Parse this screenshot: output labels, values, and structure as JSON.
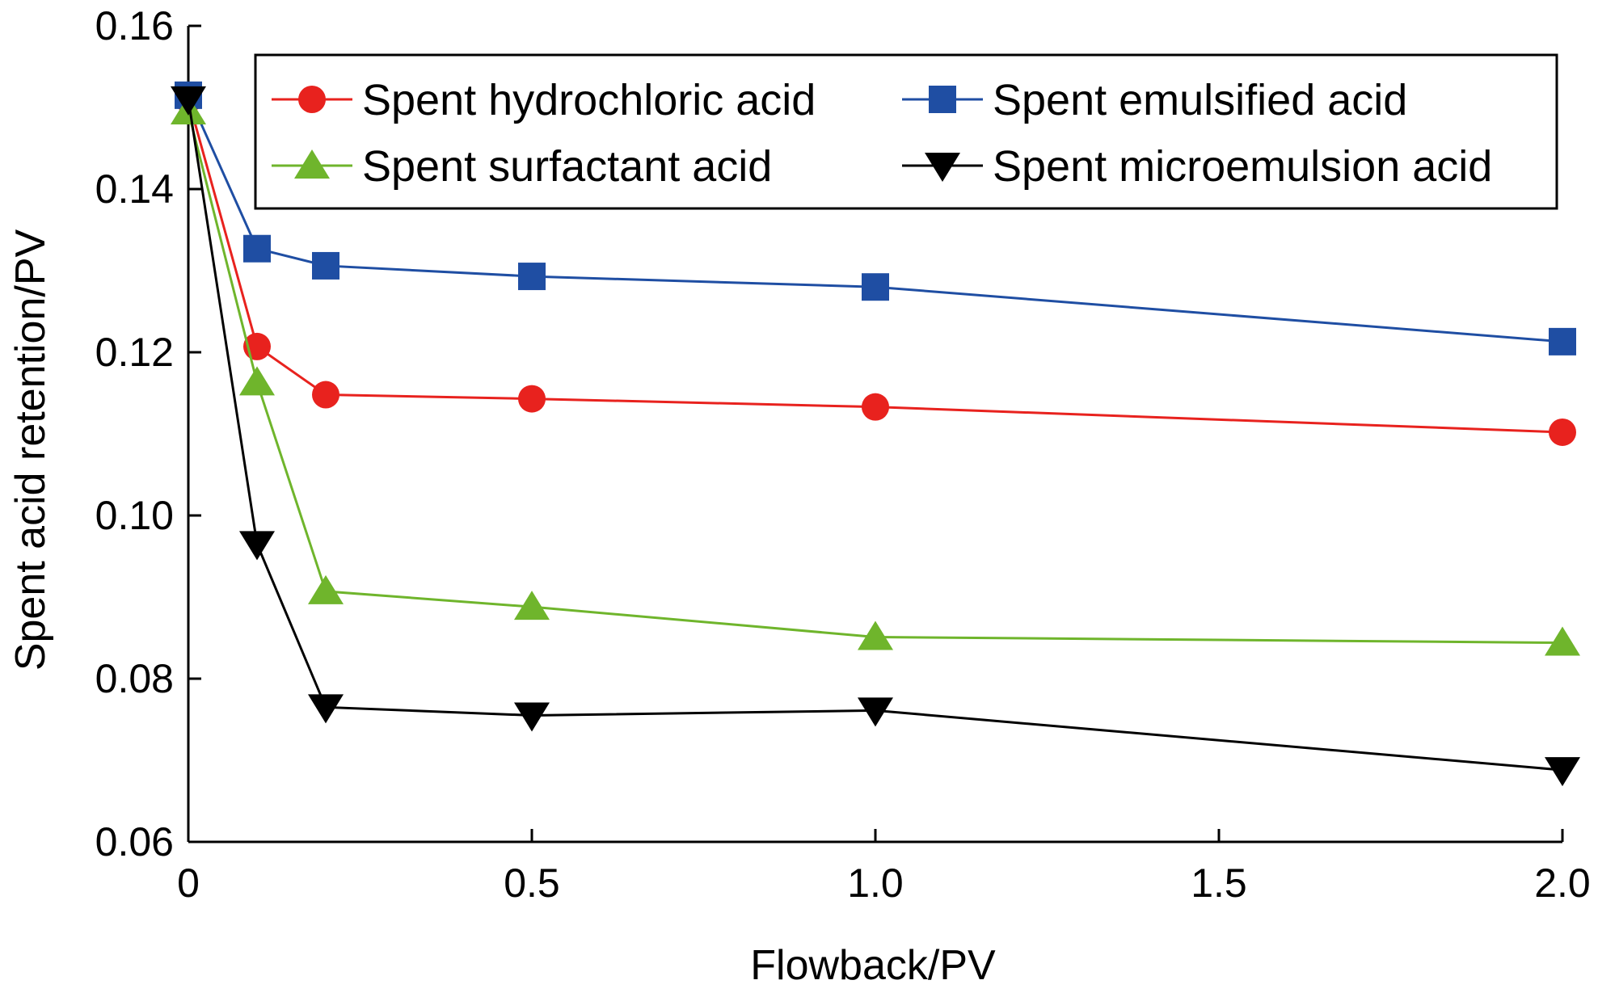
{
  "chart_data": {
    "type": "line",
    "title": "",
    "xlabel": "Flowback/PV",
    "ylabel": "Spent acid retention/PV",
    "xlim": [
      0,
      2.0
    ],
    "ylim": [
      0.06,
      0.16
    ],
    "xticks": [
      0,
      0.5,
      1.0,
      1.5,
      2.0
    ],
    "xtick_labels": [
      "0",
      "0.5",
      "1.0",
      "1.5",
      "2.0"
    ],
    "yticks": [
      0.06,
      0.08,
      0.1,
      0.12,
      0.14,
      0.16
    ],
    "ytick_labels": [
      "0.06",
      "0.08",
      "0.10",
      "0.12",
      "0.14",
      "0.16"
    ],
    "grid": false,
    "legend_position": "top-right",
    "x": [
      0,
      0.1,
      0.2,
      0.5,
      1.0,
      2.0
    ],
    "series": [
      {
        "name": "Spent hydrochloric acid",
        "marker": "circle",
        "color": "#e8221e",
        "values": [
          0.151,
          0.1207,
          0.1148,
          0.1143,
          0.1133,
          0.1102
        ]
      },
      {
        "name": "Spent emulsified acid",
        "marker": "square",
        "color": "#1f4ea3",
        "values": [
          0.1515,
          0.1327,
          0.1306,
          0.1293,
          0.128,
          0.1213
        ]
      },
      {
        "name": "Spent surfactant acid",
        "marker": "triangle-up",
        "color": "#6fb52c",
        "values": [
          0.1495,
          0.1163,
          0.0907,
          0.0888,
          0.0851,
          0.0844
        ]
      },
      {
        "name": "Spent microemulsion acid",
        "marker": "triangle-down",
        "color": "#000000",
        "values": [
          0.151,
          0.0965,
          0.0765,
          0.0755,
          0.0761,
          0.0688
        ]
      }
    ]
  }
}
